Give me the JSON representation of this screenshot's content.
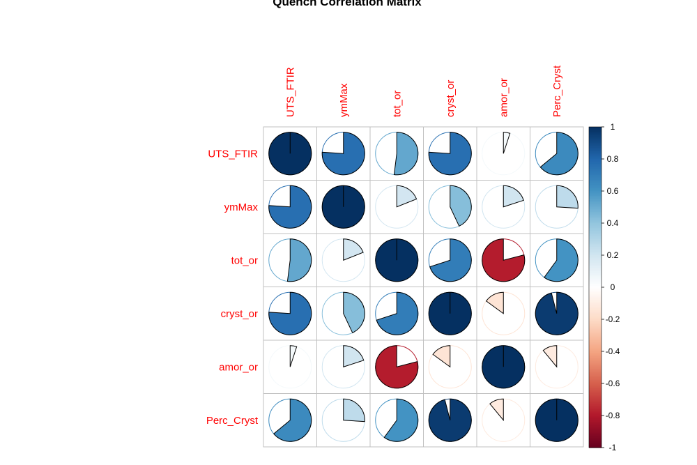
{
  "chart_data": {
    "type": "correlation-matrix-pie",
    "title": "Quench Correlation Matrix",
    "variables": [
      "UTS_FTIR",
      "ymMax",
      "tot_or",
      "cryst_or",
      "amor_or",
      "Perc_Cryst"
    ],
    "matrix": [
      [
        1.0,
        0.76,
        0.52,
        0.76,
        0.05,
        0.64
      ],
      [
        0.76,
        1.0,
        0.19,
        0.43,
        0.2,
        0.26
      ],
      [
        0.52,
        0.19,
        1.0,
        0.7,
        -0.79,
        0.6
      ],
      [
        0.76,
        0.43,
        0.7,
        1.0,
        -0.15,
        0.96
      ],
      [
        0.05,
        0.2,
        -0.79,
        -0.15,
        1.0,
        -0.11
      ],
      [
        0.64,
        0.26,
        0.6,
        0.96,
        -0.11,
        1.0
      ]
    ],
    "colorbar": {
      "range": [
        -1,
        1
      ],
      "ticks": [
        "1",
        "0.8",
        "0.6",
        "0.4",
        "0.2",
        "0",
        "-0.2",
        "-0.4",
        "-0.6",
        "-0.8",
        "-1"
      ]
    },
    "colors": {
      "positive_dark": "#053061",
      "positive_mid": "#2166AC",
      "positive_light": "#92C5DE",
      "neutral": "#F7F7F7",
      "negative_light": "#F4A582",
      "negative_mid": "#B2182B",
      "negative_dark": "#67001F",
      "label": "#FF0000",
      "grid": "#C0C0C0"
    }
  }
}
